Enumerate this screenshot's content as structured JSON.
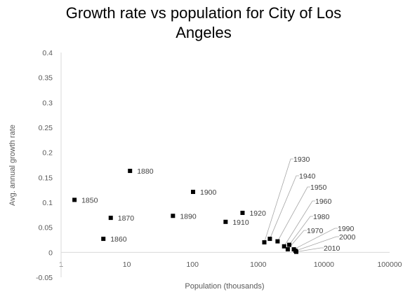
{
  "chart_data": {
    "type": "scatter",
    "title_lines": [
      "Growth rate vs population for City of Los",
      "Angeles"
    ],
    "xlabel": "Population (thousands)",
    "ylabel": "Avg. annual growth rate",
    "x_scale": "log",
    "xlim": [
      1,
      100000
    ],
    "ylim": [
      -0.05,
      0.4
    ],
    "x_ticks": [
      "1",
      "10",
      "100",
      "1000",
      "10000",
      "100000"
    ],
    "y_ticks": [
      "0.4",
      "0.35",
      "0.3",
      "0.25",
      "0.2",
      "0.15",
      "0.1",
      "0.05",
      "0",
      "-0.05"
    ],
    "grid": false,
    "legend": "none",
    "marker_color": "#000000",
    "points": [
      {
        "label": "1850",
        "x": 1.6,
        "y": 0.105
      },
      {
        "label": "1860",
        "x": 4.4,
        "y": 0.027
      },
      {
        "label": "1870",
        "x": 5.7,
        "y": 0.069
      },
      {
        "label": "1880",
        "x": 11.2,
        "y": 0.163
      },
      {
        "label": "1890",
        "x": 50.4,
        "y": 0.073
      },
      {
        "label": "1900",
        "x": 102,
        "y": 0.121
      },
      {
        "label": "1910",
        "x": 319,
        "y": 0.061
      },
      {
        "label": "1920",
        "x": 577,
        "y": 0.079
      },
      {
        "label": "1930",
        "x": 1238,
        "y": 0.02
      },
      {
        "label": "1940",
        "x": 1504,
        "y": 0.027
      },
      {
        "label": "1950",
        "x": 1970,
        "y": 0.022
      },
      {
        "label": "1960",
        "x": 2479,
        "y": 0.012
      },
      {
        "label": "1970",
        "x": 2816,
        "y": 0.006
      },
      {
        "label": "1980",
        "x": 2967,
        "y": 0.015
      },
      {
        "label": "1990",
        "x": 3485,
        "y": 0.006
      },
      {
        "label": "2000",
        "x": 3695,
        "y": 0.003
      },
      {
        "label": "2010",
        "x": 3793,
        "y": 0.001
      }
    ]
  }
}
